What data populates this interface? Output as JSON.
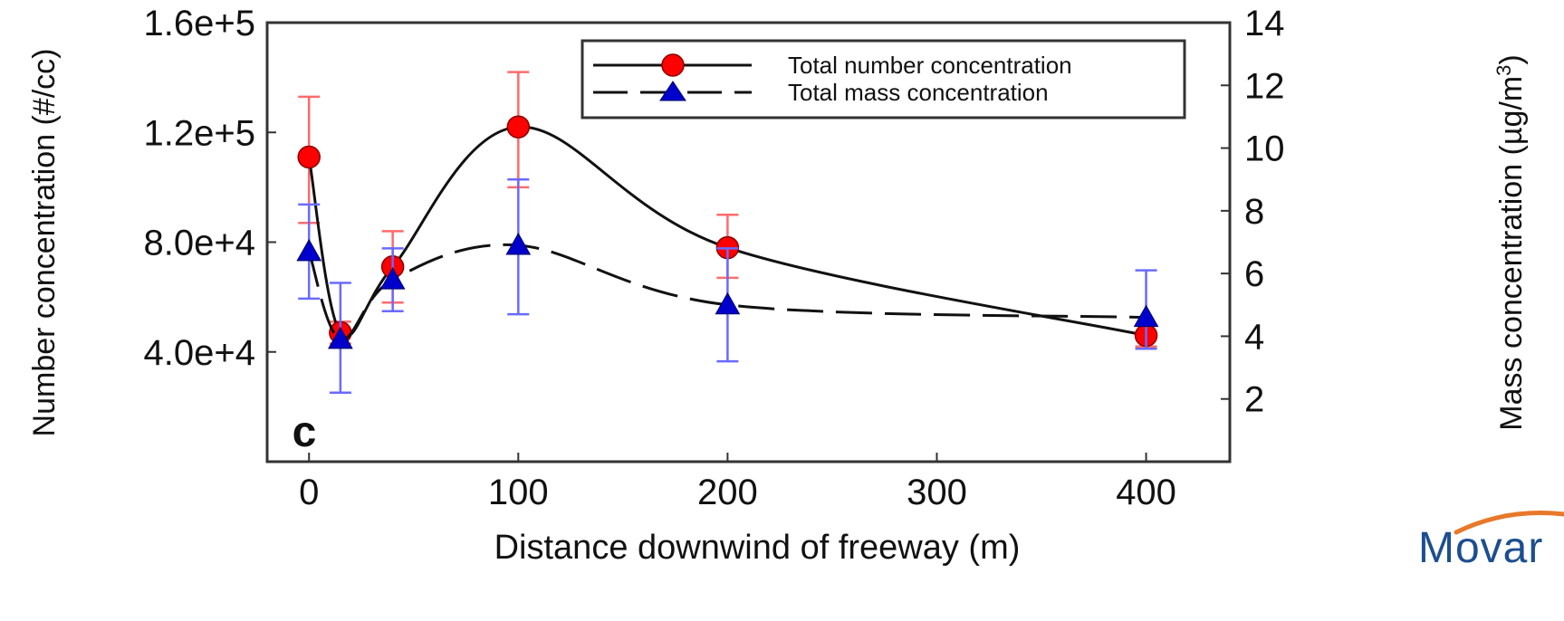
{
  "chart_data": {
    "type": "line",
    "panel_label": "c",
    "xlabel": "Distance downwind of freeway (m)",
    "ylabel_left": "Number concentration (#/cc)",
    "ylabel_right_main": "Mass concentration (µg/m",
    "ylabel_right_sup": "3",
    "ylabel_right_close": ")",
    "xlim": [
      -20,
      440
    ],
    "ylim_left": [
      0,
      160000
    ],
    "ylim_right": [
      0,
      14
    ],
    "x_ticks": [
      0,
      100,
      200,
      300,
      400
    ],
    "x_tick_labels": [
      "0",
      "100",
      "200",
      "300",
      "400"
    ],
    "y_left_ticks": [
      40000,
      80000,
      120000,
      160000
    ],
    "y_left_tick_labels": [
      "4.0e+4",
      "8.0e+4",
      "1.2e+5",
      "1.6e+5"
    ],
    "y_right_ticks": [
      2,
      4,
      6,
      8,
      10,
      12,
      14
    ],
    "y_right_tick_labels": [
      "2",
      "4",
      "6",
      "8",
      "10",
      "12",
      "14"
    ],
    "legend_position": "top-right",
    "series": [
      {
        "name": "Total number concentration",
        "axis": "left",
        "marker": "circle",
        "line_style": "solid",
        "color": "#ff0000",
        "error_color": "#ff6b6b",
        "x": [
          0,
          15,
          40,
          100,
          200,
          400
        ],
        "y": [
          111000,
          47000,
          71000,
          122000,
          78000,
          46000
        ],
        "y_err_low": [
          87000,
          43000,
          58000,
          100000,
          67000,
          42000
        ],
        "y_err_high": [
          133000,
          51000,
          84000,
          142000,
          90000,
          50000
        ]
      },
      {
        "name": "Total mass concentration",
        "axis": "right",
        "marker": "triangle",
        "line_style": "dashed",
        "color": "#0000cc",
        "error_color": "#6a6aff",
        "x": [
          0,
          15,
          40,
          100,
          200,
          400
        ],
        "y": [
          6.7,
          3.9,
          5.8,
          6.9,
          5.0,
          4.6
        ],
        "y_err_low": [
          5.2,
          2.2,
          4.8,
          4.7,
          3.2,
          3.6
        ],
        "y_err_high": [
          8.2,
          5.7,
          6.8,
          9.0,
          6.8,
          6.1
        ]
      }
    ]
  },
  "brand": {
    "logo_text": "Movar",
    "colors": {
      "text": "#1d4e8f",
      "swoosh": "#e8782a"
    }
  }
}
